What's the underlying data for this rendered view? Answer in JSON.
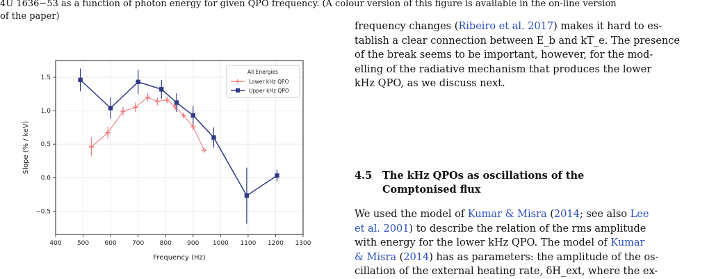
{
  "caption": {
    "line1": "4U 1636−53 as a function of photon energy for given QPO frequency. (A colour version of this figure is available in the on-line version",
    "line2": "of the paper)"
  },
  "body_text": {
    "p1_l1a": "frequency changes (",
    "p1_l1_cite": "Ribeiro et al. 2017",
    "p1_l1b": ") makes it hard to es-",
    "p1_l2": "tablish a clear connection between E_b and kT_e. The presence",
    "p1_l3": "of the break seems to be important, however, for the mod-",
    "p1_l4": "elling of the radiative mechanism that produces the lower",
    "p1_l5": "kHz QPO, as we discuss next.",
    "sec_num": "4.5",
    "sec_title_1": "The kHz QPOs as oscillations of the",
    "sec_title_2": "Comptonised flux",
    "p2_l1a": "We used the model of ",
    "p2_l1_cite": "Kumar & Misra",
    "p2_l1b": " (",
    "p2_l1_cite2": "2014",
    "p2_l1c": "; see also ",
    "p2_l1_cite3": "Lee",
    "p2_l2_cite": "et al. 2001",
    "p2_l2b": ") to describe the relation of the rms amplitude",
    "p2_l3a": "with energy for the lower kHz QPO. The model of ",
    "p2_l3_cite": "Kumar",
    "p2_l4_cite": "& Misra",
    "p2_l4b": " (",
    "p2_l4_cite2": "2014",
    "p2_l4c": ") has as parameters: the amplitude of the os-",
    "p2_l5": "cillation of the external heating rate, δH_ext, where the ex-"
  },
  "chart_data": {
    "type": "scatter",
    "xlabel": "Frequency (Hz)",
    "ylabel": "Slope (% / keV)",
    "xlim": [
      400,
      1300
    ],
    "ylim": [
      -0.85,
      1.75
    ],
    "xticks": [
      400,
      500,
      600,
      700,
      800,
      900,
      1000,
      1100,
      1200,
      1300
    ],
    "yticks": [
      -0.5,
      0.0,
      0.5,
      1.0,
      1.5
    ],
    "grid": true,
    "legend_title": "All Energies",
    "legend_position": "top-right",
    "series": [
      {
        "name": "Lower kHz QPO",
        "color": "#f08080",
        "marker": "plus",
        "x": [
          530,
          590,
          645,
          690,
          735,
          770,
          805,
          835,
          865,
          900,
          940
        ],
        "y": [
          0.46,
          0.67,
          0.99,
          1.05,
          1.2,
          1.14,
          1.16,
          1.06,
          0.93,
          0.76,
          0.41
        ],
        "err": [
          0.14,
          0.09,
          0.07,
          0.07,
          0.06,
          0.06,
          0.05,
          0.05,
          0.04,
          0.05,
          0.03
        ]
      },
      {
        "name": "Upper kHz QPO",
        "color": "#2e3a87",
        "marker": "square",
        "x": [
          490,
          600,
          700,
          785,
          840,
          900,
          975,
          1095,
          1205
        ],
        "y": [
          1.46,
          1.04,
          1.43,
          1.32,
          1.12,
          0.93,
          0.6,
          -0.27,
          0.03
        ],
        "err": [
          0.17,
          0.16,
          0.18,
          0.14,
          0.14,
          0.14,
          0.15,
          0.42,
          0.09
        ]
      }
    ]
  }
}
